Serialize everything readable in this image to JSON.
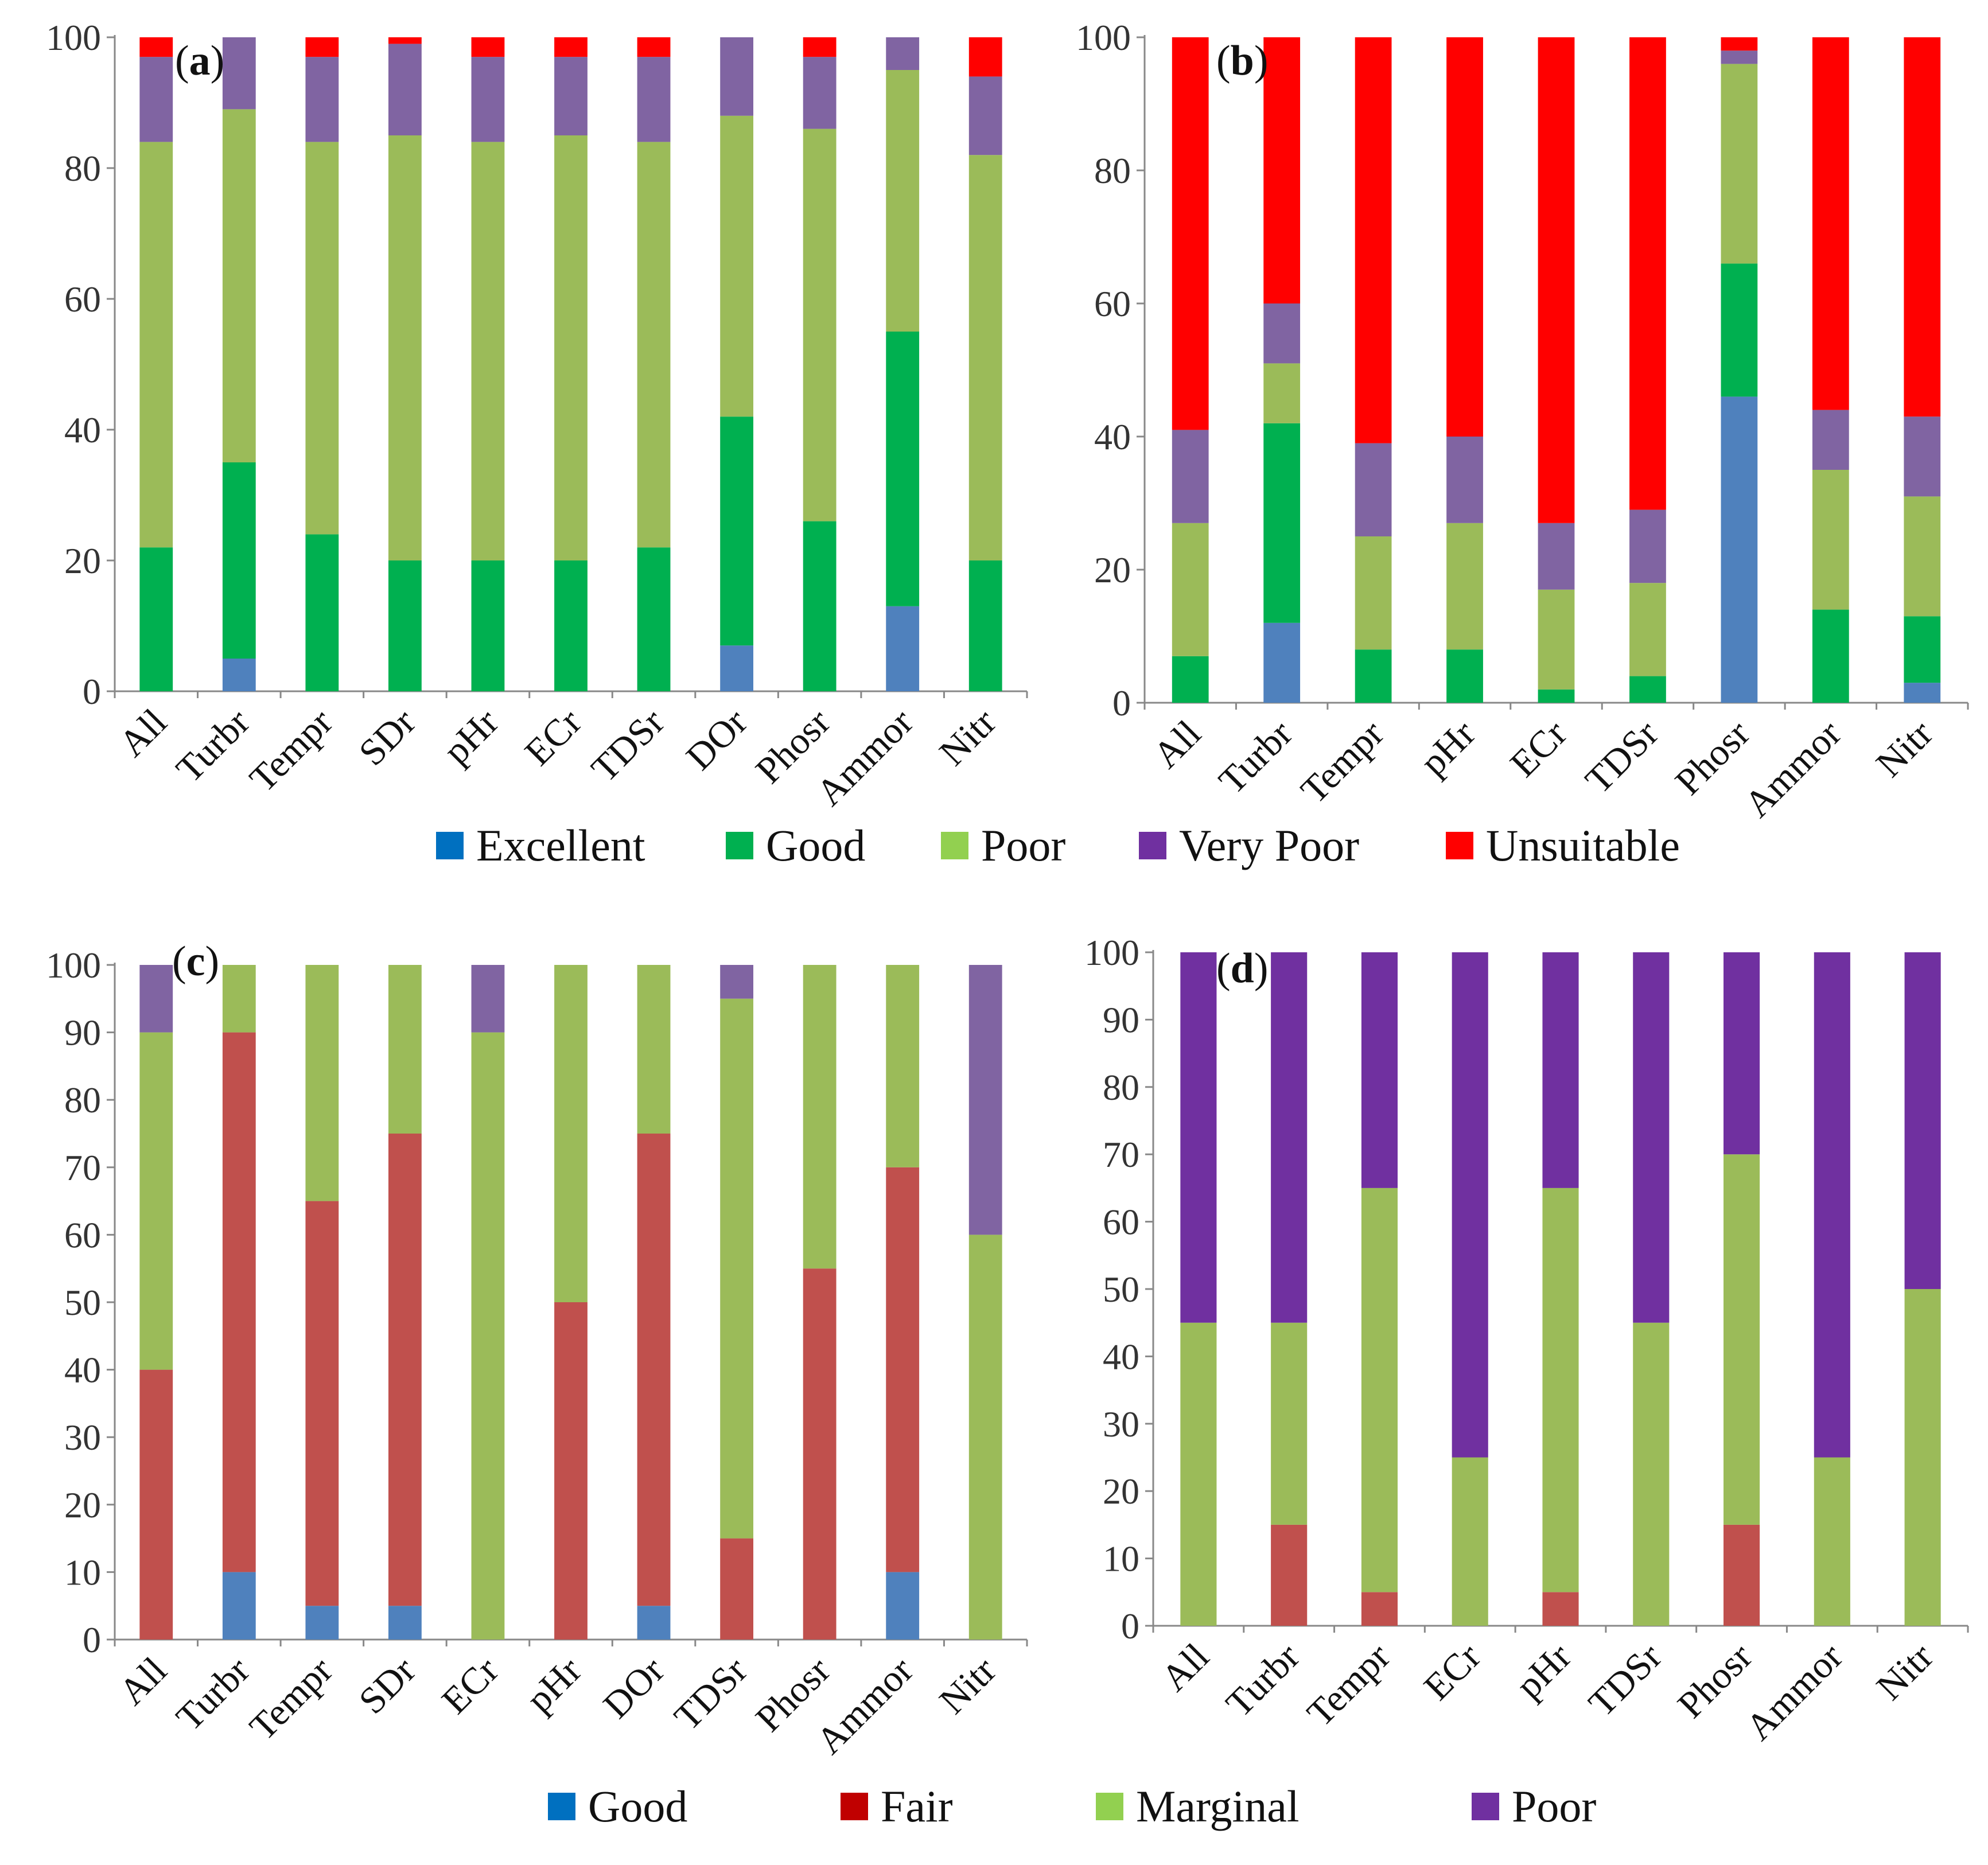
{
  "legends": [
    {
      "entries": [
        {
          "label": "Excellent",
          "color": "#0070c0"
        },
        {
          "label": "Good",
          "color": "#00b050"
        },
        {
          "label": "Poor",
          "color": "#92d050"
        },
        {
          "label": "Very Poor",
          "color": "#7030a0"
        },
        {
          "label": "Unsuitable",
          "color": "#ff0000"
        }
      ]
    },
    {
      "entries": [
        {
          "label": "Good",
          "color": "#0070c0"
        },
        {
          "label": "Fair",
          "color": "#c00000"
        },
        {
          "label": "Marginal",
          "color": "#92d050"
        },
        {
          "label": "Poor",
          "color": "#7030a0"
        }
      ]
    }
  ],
  "chart_data": [
    {
      "type": "bar",
      "stacked": true,
      "panel_label": "a",
      "categories": [
        "All",
        "Turbr",
        "Tempr",
        "SDr",
        "pHr",
        "ECr",
        "TDSr",
        "DOr",
        "Phosr",
        "Ammor",
        "Nitr"
      ],
      "ylim": [
        0,
        100
      ],
      "yticks": [
        0,
        20,
        40,
        60,
        80,
        100
      ],
      "series": [
        {
          "name": "Excellent",
          "color": "#4f81bd",
          "values": [
            0,
            5,
            0,
            0,
            0,
            0,
            0,
            7,
            0,
            13,
            0
          ]
        },
        {
          "name": "Good",
          "color": "#00b050",
          "values": [
            22,
            30,
            24,
            20,
            20,
            20,
            22,
            35,
            26,
            42,
            20
          ]
        },
        {
          "name": "Poor",
          "color": "#9bbb59",
          "values": [
            62,
            54,
            60,
            65,
            64,
            65,
            62,
            46,
            60,
            40,
            62
          ]
        },
        {
          "name": "Very Poor",
          "color": "#8064a2",
          "values": [
            13,
            11,
            13,
            14,
            13,
            12,
            13,
            12,
            11,
            5,
            12
          ]
        },
        {
          "name": "Unsuitable",
          "color": "#ff0000",
          "values": [
            3,
            0,
            3,
            1,
            3,
            3,
            3,
            0,
            3,
            0,
            6
          ]
        }
      ]
    },
    {
      "type": "bar",
      "stacked": true,
      "panel_label": "b",
      "categories": [
        "All",
        "Turbr",
        "Tempr",
        "pHr",
        "ECr",
        "TDSr",
        "Phosr",
        "Ammor",
        "Nitr"
      ],
      "ylim": [
        0,
        100
      ],
      "yticks": [
        0,
        20,
        40,
        60,
        80,
        100
      ],
      "series": [
        {
          "name": "Excellent",
          "color": "#4f81bd",
          "values": [
            0,
            12,
            0,
            0,
            0,
            0,
            46,
            0,
            3
          ]
        },
        {
          "name": "Good",
          "color": "#00b050",
          "values": [
            7,
            30,
            8,
            8,
            2,
            4,
            20,
            14,
            10
          ]
        },
        {
          "name": "Poor",
          "color": "#9bbb59",
          "values": [
            20,
            9,
            17,
            19,
            15,
            14,
            30,
            21,
            18
          ]
        },
        {
          "name": "Very Poor",
          "color": "#8064a2",
          "values": [
            14,
            9,
            14,
            13,
            10,
            11,
            2,
            9,
            12
          ]
        },
        {
          "name": "Unsuitable",
          "color": "#ff0000",
          "values": [
            59,
            40,
            61,
            60,
            73,
            71,
            2,
            56,
            57
          ]
        }
      ]
    },
    {
      "type": "bar",
      "stacked": true,
      "panel_label": "c",
      "categories": [
        "All",
        "Turbr",
        "Tempr",
        "SDr",
        "ECr",
        "pHr",
        "DOr",
        "TDSr",
        "Phosr",
        "Ammor",
        "Nitr"
      ],
      "ylim": [
        0,
        100
      ],
      "yticks": [
        0,
        10,
        20,
        30,
        40,
        50,
        60,
        70,
        80,
        90,
        100
      ],
      "series": [
        {
          "name": "Good",
          "color": "#4f81bd",
          "values": [
            0,
            10,
            5,
            5,
            0,
            0,
            5,
            0,
            0,
            10,
            0
          ]
        },
        {
          "name": "Fair",
          "color": "#c0504d",
          "values": [
            40,
            80,
            60,
            70,
            0,
            50,
            70,
            15,
            55,
            60,
            0
          ]
        },
        {
          "name": "Marginal",
          "color": "#9bbb59",
          "values": [
            50,
            10,
            35,
            25,
            90,
            50,
            25,
            80,
            45,
            30,
            60
          ]
        },
        {
          "name": "Poor",
          "color": "#8064a2",
          "values": [
            10,
            0,
            0,
            0,
            10,
            0,
            0,
            5,
            0,
            0,
            40
          ]
        }
      ]
    },
    {
      "type": "bar",
      "stacked": true,
      "panel_label": "d",
      "categories": [
        "All",
        "Turbr",
        "Tempr",
        "ECr",
        "pHr",
        "TDSr",
        "Phosr",
        "Ammor",
        "Nitr"
      ],
      "ylim": [
        0,
        100
      ],
      "yticks": [
        0,
        10,
        20,
        30,
        40,
        50,
        60,
        70,
        80,
        90,
        100
      ],
      "series": [
        {
          "name": "Fair",
          "color": "#c0504d",
          "values": [
            0,
            15,
            5,
            0,
            5,
            0,
            15,
            0,
            0
          ]
        },
        {
          "name": "Marginal",
          "color": "#9bbb59",
          "values": [
            45,
            30,
            60,
            25,
            60,
            45,
            55,
            25,
            50
          ]
        },
        {
          "name": "Poor",
          "color": "#7030a0",
          "values": [
            55,
            55,
            35,
            75,
            35,
            55,
            30,
            75,
            50
          ]
        }
      ]
    }
  ]
}
